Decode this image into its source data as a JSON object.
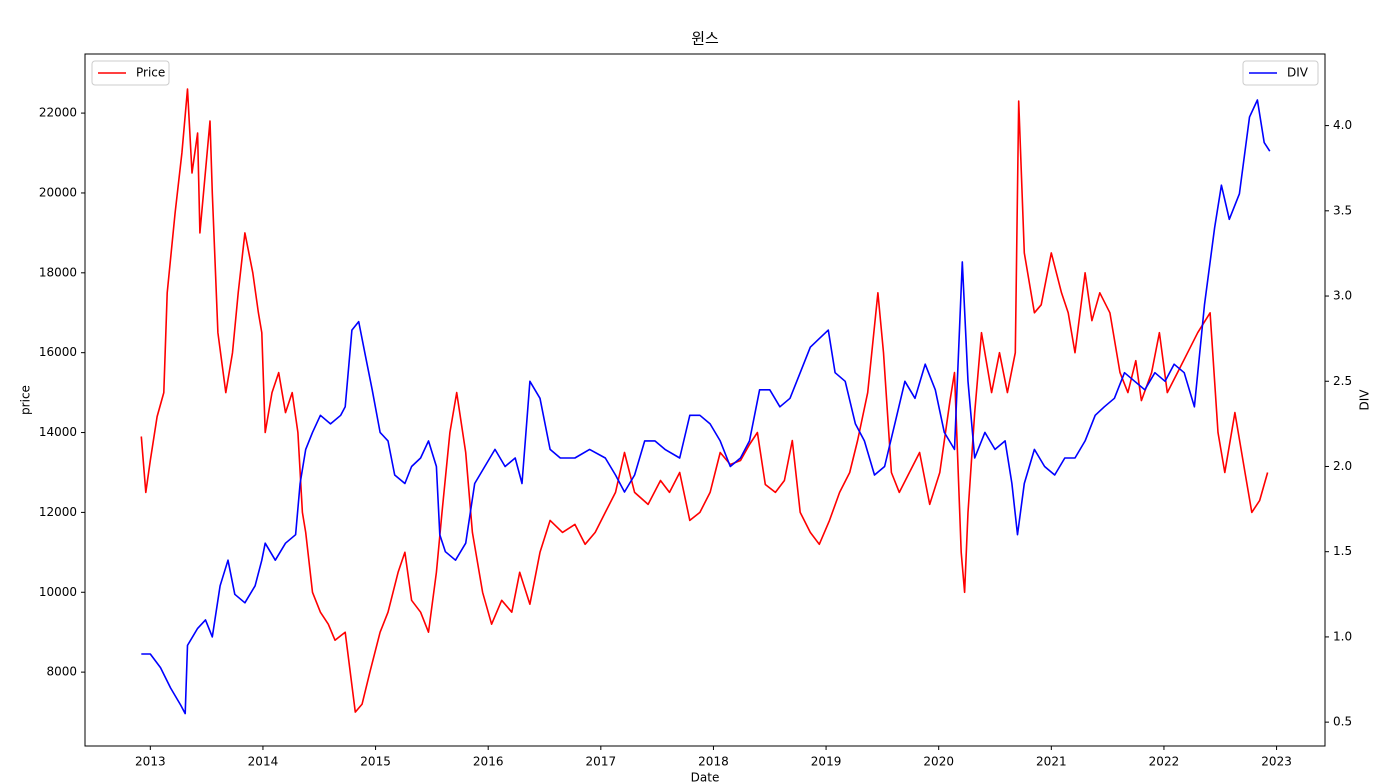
{
  "chart_data": {
    "type": "line",
    "title": "윈스",
    "x_label": "Date",
    "y_label": "price",
    "y2_label": "DIV",
    "xlim": [
      2012.42,
      2023.43
    ],
    "xticks": [
      2013,
      2014,
      2015,
      2016,
      2017,
      2018,
      2019,
      2020,
      2021,
      2022,
      2023
    ],
    "ylim": [
      6150,
      23480
    ],
    "yticks": [
      8000,
      10000,
      12000,
      14000,
      16000,
      18000,
      20000,
      22000
    ],
    "y2lim": [
      0.36,
      4.42
    ],
    "y2ticks": [
      0.5,
      {
        "value": 1,
        "label": "1.0"
      },
      1.5,
      {
        "value": 2,
        "label": "2.0"
      },
      2.5,
      {
        "value": 3,
        "label": "3.0"
      },
      3.5,
      {
        "value": 4,
        "label": "4.0"
      }
    ],
    "grid": false,
    "series": [
      {
        "name": "Price",
        "color": "#ff0000",
        "axis": "y",
        "legend_loc": "upper left",
        "x": [
          2012.92,
          2012.96,
          2013.0,
          2013.06,
          2013.12,
          2013.15,
          2013.22,
          2013.28,
          2013.33,
          2013.37,
          2013.42,
          2013.44,
          2013.53,
          2013.55,
          2013.6,
          2013.67,
          2013.73,
          2013.78,
          2013.84,
          2013.91,
          2013.96,
          2013.99,
          2014.02,
          2014.08,
          2014.14,
          2014.2,
          2014.26,
          2014.31,
          2014.35,
          2014.38,
          2014.44,
          2014.51,
          2014.58,
          2014.64,
          2014.73,
          2014.82,
          2014.88,
          2014.95,
          2015.04,
          2015.11,
          2015.2,
          2015.26,
          2015.32,
          2015.4,
          2015.47,
          2015.54,
          2015.59,
          2015.66,
          2015.72,
          2015.8,
          2015.86,
          2015.95,
          2016.03,
          2016.12,
          2016.21,
          2016.28,
          2016.37,
          2016.46,
          2016.55,
          2016.66,
          2016.77,
          2016.86,
          2016.95,
          2017.04,
          2017.13,
          2017.21,
          2017.3,
          2017.42,
          2017.53,
          2017.61,
          2017.7,
          2017.79,
          2017.88,
          2017.97,
          2018.06,
          2018.15,
          2018.24,
          2018.32,
          2018.39,
          2018.46,
          2018.55,
          2018.63,
          2018.7,
          2018.77,
          2018.86,
          2018.94,
          2019.03,
          2019.12,
          2019.21,
          2019.28,
          2019.37,
          2019.46,
          2019.51,
          2019.58,
          2019.65,
          2019.74,
          2019.83,
          2019.92,
          2020.01,
          2020.1,
          2020.14,
          2020.2,
          2020.23,
          2020.26,
          2020.32,
          2020.38,
          2020.47,
          2020.54,
          2020.61,
          2020.68,
          2020.71,
          2020.76,
          2020.85,
          2020.91,
          2021.0,
          2021.09,
          2021.15,
          2021.21,
          2021.3,
          2021.36,
          2021.43,
          2021.52,
          2021.61,
          2021.68,
          2021.75,
          2021.8,
          2021.89,
          2021.96,
          2022.03,
          2022.12,
          2022.21,
          2022.3,
          2022.41,
          2022.48,
          2022.54,
          2022.63,
          2022.72,
          2022.78,
          2022.85,
          2022.92
        ],
        "values": [
          13900,
          12500,
          13300,
          14400,
          15000,
          17500,
          19500,
          21000,
          22600,
          20500,
          21500,
          19000,
          21800,
          20000,
          16500,
          15000,
          16000,
          17500,
          19000,
          18000,
          17000,
          16500,
          14000,
          15000,
          15500,
          14500,
          15000,
          14000,
          12000,
          11500,
          10000,
          9500,
          9200,
          8800,
          9000,
          7000,
          7200,
          8000,
          9000,
          9500,
          10500,
          11000,
          9800,
          9500,
          9000,
          10500,
          12000,
          14000,
          15000,
          13500,
          11500,
          10000,
          9200,
          9800,
          9500,
          10500,
          9700,
          11000,
          11800,
          11500,
          11700,
          11200,
          11500,
          12000,
          12500,
          13500,
          12500,
          12200,
          12800,
          12500,
          13000,
          11800,
          12000,
          12500,
          13500,
          13200,
          13300,
          13700,
          14000,
          12700,
          12500,
          12800,
          13800,
          12000,
          11500,
          11200,
          11800,
          12500,
          13000,
          13800,
          15000,
          17500,
          16000,
          13000,
          12500,
          13000,
          13500,
          12200,
          13000,
          14800,
          15500,
          11000,
          10000,
          12000,
          14500,
          16500,
          15000,
          16000,
          15000,
          16000,
          22300,
          18500,
          17000,
          17200,
          18500,
          17500,
          17000,
          16000,
          18000,
          16800,
          17500,
          17000,
          15500,
          15000,
          15800,
          14800,
          15500,
          16500,
          15000,
          15500,
          16000,
          16500,
          17000,
          14000,
          13000,
          14500,
          13000,
          12000,
          12300,
          13000
        ]
      },
      {
        "name": "DIV",
        "color": "#0000ff",
        "axis": "y2",
        "legend_loc": "upper right",
        "x": [
          2012.92,
          2013.0,
          2013.09,
          2013.18,
          2013.27,
          2013.31,
          2013.33,
          2013.42,
          2013.49,
          2013.55,
          2013.62,
          2013.69,
          2013.75,
          2013.84,
          2013.93,
          2013.99,
          2014.02,
          2014.11,
          2014.2,
          2014.29,
          2014.33,
          2014.38,
          2014.44,
          2014.51,
          2014.6,
          2014.69,
          2014.73,
          2014.79,
          2014.85,
          2014.91,
          2014.97,
          2015.04,
          2015.11,
          2015.17,
          2015.26,
          2015.32,
          2015.4,
          2015.47,
          2015.54,
          2015.57,
          2015.62,
          2015.71,
          2015.8,
          2015.88,
          2015.97,
          2016.06,
          2016.15,
          2016.24,
          2016.3,
          2016.37,
          2016.46,
          2016.55,
          2016.64,
          2016.77,
          2016.9,
          2017.04,
          2017.13,
          2017.21,
          2017.3,
          2017.39,
          2017.48,
          2017.57,
          2017.7,
          2017.79,
          2017.88,
          2017.97,
          2018.06,
          2018.15,
          2018.24,
          2018.32,
          2018.41,
          2018.5,
          2018.59,
          2018.68,
          2018.77,
          2018.86,
          2018.94,
          2019.02,
          2019.08,
          2019.17,
          2019.26,
          2019.34,
          2019.43,
          2019.52,
          2019.61,
          2019.7,
          2019.79,
          2019.88,
          2019.97,
          2020.05,
          2020.14,
          2020.21,
          2020.26,
          2020.32,
          2020.41,
          2020.5,
          2020.59,
          2020.65,
          2020.7,
          2020.76,
          2020.85,
          2020.94,
          2021.03,
          2021.12,
          2021.21,
          2021.3,
          2021.39,
          2021.47,
          2021.56,
          2021.65,
          2021.74,
          2021.83,
          2021.92,
          2022.01,
          2022.09,
          2022.18,
          2022.27,
          2022.36,
          2022.45,
          2022.51,
          2022.58,
          2022.67,
          2022.76,
          2022.83,
          2022.89,
          2022.94
        ],
        "values": [
          0.9,
          0.9,
          0.82,
          0.7,
          0.6,
          0.55,
          0.95,
          1.05,
          1.1,
          1.0,
          1.3,
          1.45,
          1.25,
          1.2,
          1.3,
          1.45,
          1.55,
          1.45,
          1.55,
          1.6,
          1.9,
          2.1,
          2.2,
          2.3,
          2.25,
          2.3,
          2.35,
          2.8,
          2.85,
          2.65,
          2.45,
          2.2,
          2.15,
          1.95,
          1.9,
          2.0,
          2.05,
          2.15,
          2.0,
          1.6,
          1.5,
          1.45,
          1.55,
          1.9,
          2.0,
          2.1,
          2.0,
          2.05,
          1.9,
          2.5,
          2.4,
          2.1,
          2.05,
          2.05,
          2.1,
          2.05,
          1.95,
          1.85,
          1.95,
          2.15,
          2.15,
          2.1,
          2.05,
          2.3,
          2.3,
          2.25,
          2.15,
          2.0,
          2.05,
          2.15,
          2.45,
          2.45,
          2.35,
          2.4,
          2.55,
          2.7,
          2.75,
          2.8,
          2.55,
          2.5,
          2.25,
          2.15,
          1.95,
          2.0,
          2.25,
          2.5,
          2.4,
          2.6,
          2.45,
          2.2,
          2.1,
          3.2,
          2.5,
          2.05,
          2.2,
          2.1,
          2.15,
          1.9,
          1.6,
          1.9,
          2.1,
          2.0,
          1.95,
          2.05,
          2.05,
          2.15,
          2.3,
          2.35,
          2.4,
          2.55,
          2.5,
          2.45,
          2.55,
          2.5,
          2.6,
          2.55,
          2.35,
          2.95,
          3.4,
          3.65,
          3.45,
          3.6,
          4.05,
          4.15,
          3.9,
          3.85
        ]
      }
    ]
  }
}
